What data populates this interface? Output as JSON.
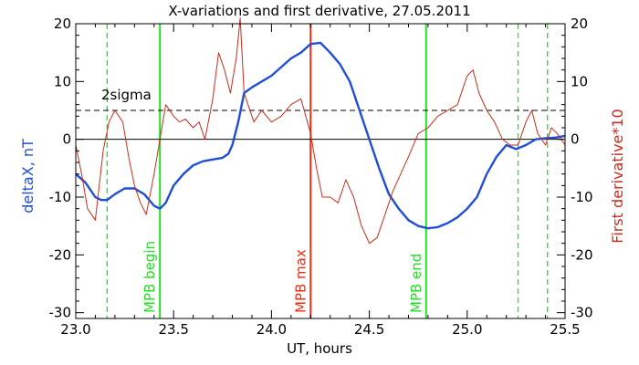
{
  "chart_data": {
    "type": "line",
    "title": "X-variations and first derivative, 27.05.2011",
    "xlabel": "UT, hours",
    "ylabel_left": "deltaX, nT",
    "ylabel_right": "First derivative*10",
    "xlim": [
      23.0,
      25.5
    ],
    "ylim": [
      -31,
      20
    ],
    "x_ticks": [
      23.0,
      23.5,
      24.0,
      24.5,
      25.0,
      25.5
    ],
    "x_tick_labels": [
      "23.0",
      "23.5",
      "24.0",
      "24.5",
      "25.0",
      "25.5"
    ],
    "y_ticks": [
      -30,
      -20,
      -10,
      0,
      10,
      20
    ],
    "y_tick_labels": [
      "-30",
      "-20",
      "-10",
      "0",
      "10",
      "20"
    ],
    "colors": {
      "deltax": "#1f4fd6",
      "derivative": "#cc2a1a",
      "mpb": "#22e022",
      "mpb_max": "#ee2c10",
      "threshold": "#000000"
    },
    "series": [
      {
        "name": "deltaX, nT",
        "axis": "left",
        "color": "#1f4fd6",
        "x": [
          23.0,
          23.05,
          23.1,
          23.13,
          23.16,
          23.2,
          23.25,
          23.3,
          23.35,
          23.4,
          23.43,
          23.46,
          23.5,
          23.55,
          23.6,
          23.65,
          23.7,
          23.75,
          23.78,
          23.8,
          23.83,
          23.86,
          23.9,
          24.0,
          24.1,
          24.15,
          24.2,
          24.25,
          24.3,
          24.35,
          24.4,
          24.45,
          24.5,
          24.55,
          24.6,
          24.65,
          24.7,
          24.75,
          24.8,
          24.85,
          24.9,
          24.95,
          25.0,
          25.05,
          25.1,
          25.15,
          25.2,
          25.25,
          25.3,
          25.35,
          25.4,
          25.45,
          25.5
        ],
        "y": [
          -6,
          -7.5,
          -10,
          -10.5,
          -10.5,
          -9.5,
          -8.5,
          -8.5,
          -9.5,
          -11.5,
          -12,
          -11,
          -8,
          -6,
          -4.5,
          -3.8,
          -3.5,
          -3.2,
          -2.5,
          -1,
          3,
          8,
          9,
          11,
          14,
          15,
          16.5,
          16.7,
          15,
          13,
          10,
          5,
          0,
          -5,
          -9.5,
          -12,
          -14,
          -15,
          -15.4,
          -15.2,
          -14.5,
          -13.5,
          -12,
          -10,
          -6,
          -3,
          -1,
          -1.7,
          -1,
          0,
          0.2,
          0.3,
          0.6
        ]
      },
      {
        "name": "First derivative*10",
        "axis": "right",
        "color": "#cc2a1a",
        "x": [
          23.0,
          23.03,
          23.06,
          23.1,
          23.14,
          23.17,
          23.2,
          23.24,
          23.27,
          23.3,
          23.33,
          23.36,
          23.4,
          23.43,
          23.46,
          23.5,
          23.53,
          23.56,
          23.6,
          23.63,
          23.66,
          23.7,
          23.73,
          23.76,
          23.79,
          23.82,
          23.84,
          23.86,
          23.88,
          23.91,
          23.95,
          24.0,
          24.05,
          24.1,
          24.15,
          24.2,
          24.23,
          24.26,
          24.3,
          24.34,
          24.38,
          24.42,
          24.46,
          24.5,
          24.54,
          24.58,
          24.62,
          24.66,
          24.7,
          24.75,
          24.8,
          24.85,
          24.9,
          24.95,
          25.0,
          25.03,
          25.06,
          25.1,
          25.14,
          25.18,
          25.22,
          25.26,
          25.3,
          25.33,
          25.36,
          25.4,
          25.43,
          25.46,
          25.5
        ],
        "y": [
          -1,
          -6,
          -12,
          -14,
          -2,
          3,
          5,
          3,
          -3,
          -8,
          -11,
          -13,
          -6,
          0,
          6,
          4,
          3,
          3.5,
          2,
          3,
          0,
          7,
          15,
          12,
          8,
          14,
          21,
          8,
          6,
          3,
          5,
          3,
          4,
          6,
          7,
          1,
          -5,
          -10,
          -10,
          -11,
          -7,
          -10,
          -15,
          -18,
          -17,
          -13,
          -9,
          -6,
          -3,
          1,
          2,
          4,
          5,
          6,
          11,
          12,
          8,
          5,
          3,
          0,
          -1,
          -1,
          3,
          5,
          1,
          -1,
          2,
          1,
          -1
        ]
      }
    ],
    "threshold": {
      "label": "2sigma",
      "y": 5,
      "style": "dashed"
    },
    "zero_line": {
      "y": 0
    },
    "vertical_lines": [
      {
        "x": 23.16,
        "style": "dashed",
        "color": "#22e022",
        "label": ""
      },
      {
        "x": 23.43,
        "style": "solid",
        "color": "#22e022",
        "label": "MPB begin"
      },
      {
        "x": 24.2,
        "style": "solid",
        "color": "#ee2c10",
        "label": "MPB max"
      },
      {
        "x": 24.79,
        "style": "solid",
        "color": "#22e022",
        "label": "MPB end"
      },
      {
        "x": 25.26,
        "style": "dashed",
        "color": "#22e022",
        "label": ""
      },
      {
        "x": 25.41,
        "style": "dashed",
        "color": "#22e022",
        "label": ""
      }
    ],
    "grid": false,
    "legend": "none"
  }
}
